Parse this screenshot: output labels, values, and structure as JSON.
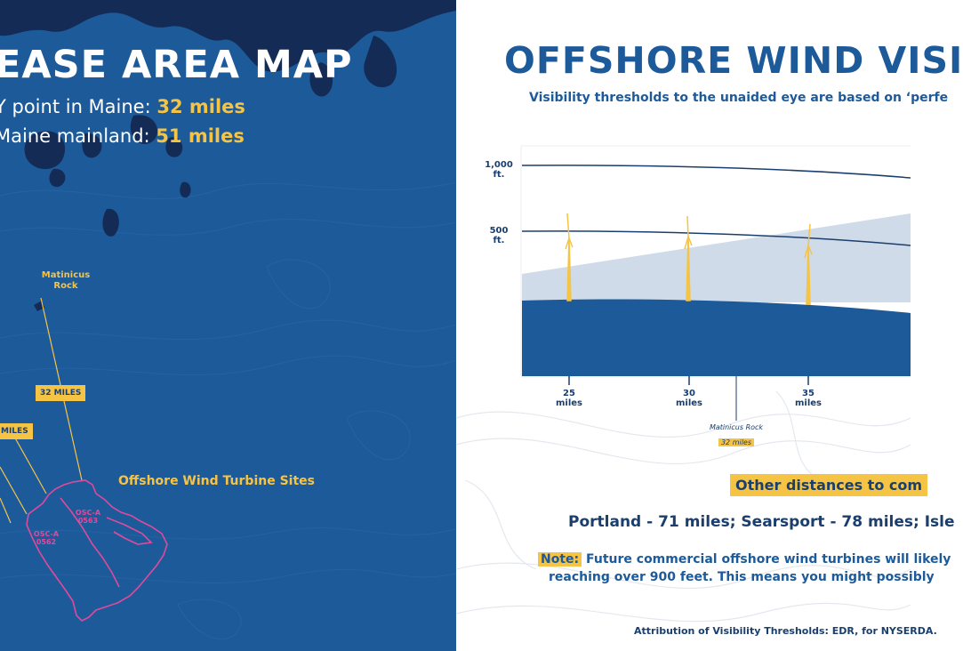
{
  "map": {
    "title": "EASE AREA MAP",
    "distance_1": {
      "label": "Y point in Maine: ",
      "value": "32 miles"
    },
    "distance_2": {
      "label": "Maine mainland: ",
      "value": "51 miles"
    },
    "rock_label": "Matinicus Rock",
    "tag_32": "32 MILES",
    "tag_cut": "MILES",
    "sites_label": "Offshore Wind Turbine Sites",
    "lease_a": {
      "line1": "OSC-A",
      "line2": "0563"
    },
    "lease_b": {
      "line1": "OSC-A",
      "line2": "0562"
    },
    "colors": {
      "ocean": "#1d5a9a",
      "land": "#142c55",
      "accent": "#f6c445",
      "lease_outline": "#e04a9c"
    }
  },
  "visibility": {
    "title": "OFFSHORE WIND VISI",
    "subtitle": "Visibility thresholds to the unaided eye are based on ‘perfe",
    "y_labels": [
      {
        "value": "1,000",
        "unit": "ft."
      },
      {
        "value": "500",
        "unit": "ft."
      }
    ],
    "x_ticks": [
      {
        "value": "25",
        "unit": "miles",
        "miles": 25
      },
      {
        "value": "30",
        "unit": "miles",
        "miles": 30
      },
      {
        "value": "35",
        "unit": "miles",
        "miles": 35
      }
    ],
    "marker": {
      "label": "Matinicus Rock",
      "value": "32 miles",
      "miles": 32
    },
    "other_tag": "Other distances to com",
    "ports": "Portland - 71 miles; Searsport - 78 miles; Isle",
    "note_label": "Note:",
    "note_line1": " Future commercial offshore wind turbines will likely",
    "note_line2": "reaching over 900 feet. This means you might possibly",
    "attribution": "Attribution of Visibility Thresholds: EDR, for NYSERDA.",
    "colors": {
      "navy": "#1d5a9a",
      "dark_navy": "#1a3f6e",
      "haze": "#cfdbe8",
      "turbine": "#f6c445"
    }
  }
}
